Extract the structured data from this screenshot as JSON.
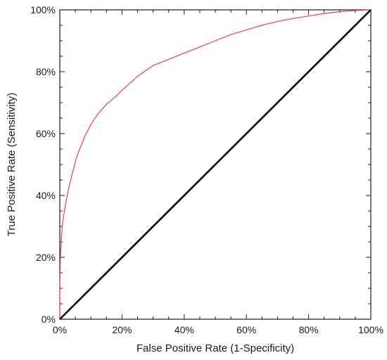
{
  "chart_data": {
    "type": "line",
    "title": "",
    "xlabel": "False Positive Rate (1-Specificity)",
    "ylabel": "True Positive Rate (Sensitivity)",
    "xlim": [
      0,
      100
    ],
    "ylim": [
      0,
      100
    ],
    "x_ticks": [
      {
        "value": 0,
        "label": "0%"
      },
      {
        "value": 20,
        "label": "20%"
      },
      {
        "value": 40,
        "label": "40%"
      },
      {
        "value": 60,
        "label": "60%"
      },
      {
        "value": 80,
        "label": "80%"
      },
      {
        "value": 100,
        "label": "100%"
      }
    ],
    "y_ticks": [
      {
        "value": 0,
        "label": "0%"
      },
      {
        "value": 20,
        "label": "20%"
      },
      {
        "value": 40,
        "label": "40%"
      },
      {
        "value": 60,
        "label": "60%"
      },
      {
        "value": 80,
        "label": "80%"
      },
      {
        "value": 100,
        "label": "100%"
      }
    ],
    "grid": false,
    "series": [
      {
        "color": "#e8404a",
        "x": [
          0,
          0,
          0.1,
          0.2,
          0.4,
          0.6,
          0.8,
          1,
          1.5,
          2,
          3,
          4,
          5,
          6,
          8,
          10,
          12,
          15,
          18,
          20,
          25,
          30,
          35,
          40,
          45,
          50,
          55,
          60,
          65,
          70,
          75,
          80,
          85,
          90,
          95,
          100
        ],
        "y": [
          0,
          10,
          16,
          20,
          24,
          27,
          30,
          32,
          35,
          38,
          43,
          47,
          51,
          54,
          59,
          63,
          66,
          69.5,
          72,
          74,
          78.5,
          82,
          84,
          86,
          88,
          90,
          92,
          93.5,
          95,
          96.2,
          97.2,
          98,
          98.8,
          99.4,
          99.8,
          100
        ]
      },
      {
        "color": "#000000",
        "x": [
          0,
          100
        ],
        "y": [
          0,
          100
        ]
      }
    ]
  }
}
